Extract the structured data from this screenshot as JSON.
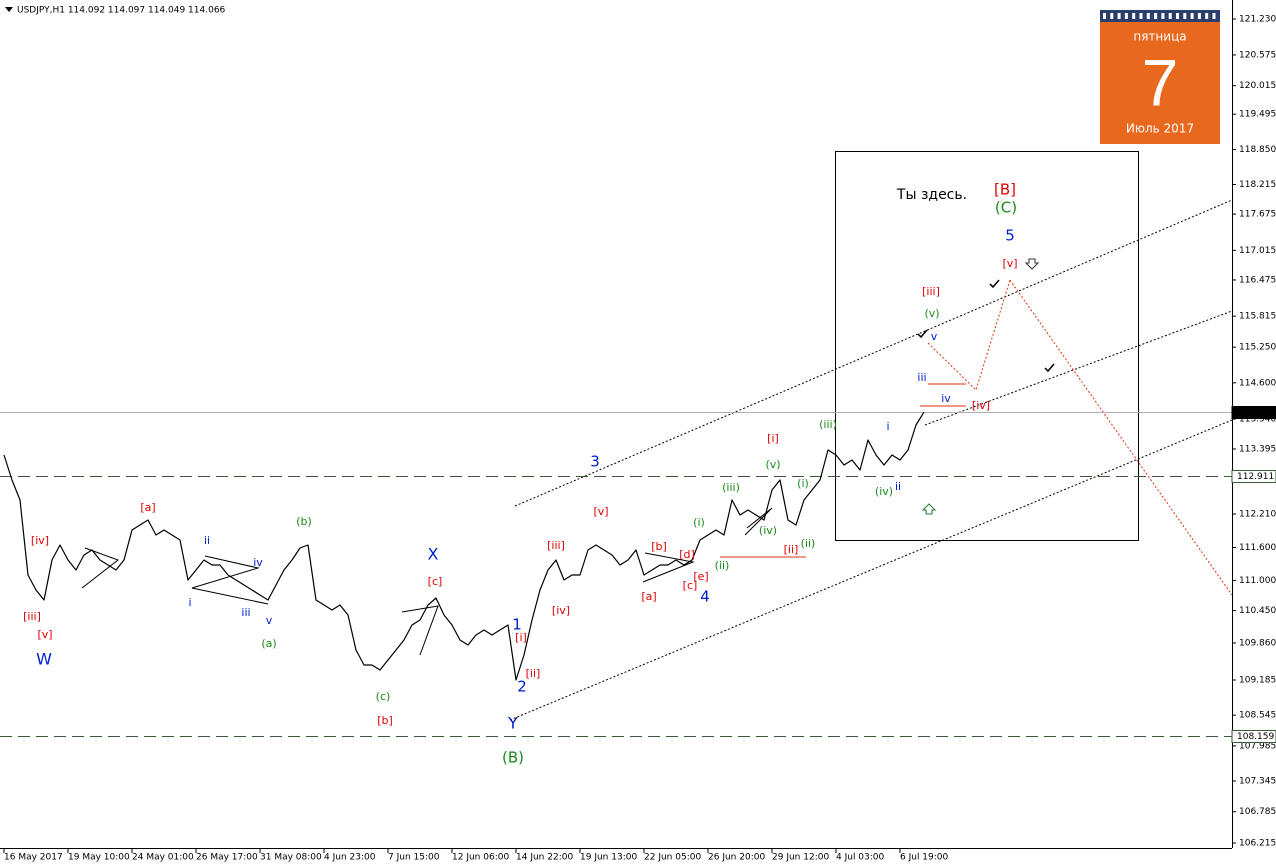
{
  "chart_data": {
    "type": "line",
    "title": "USDJPY,H1  114.092 114.097 114.049 114.066",
    "color": "#000000",
    "categories": [
      "16 May 2017",
      null,
      null,
      null,
      null,
      null,
      null,
      null,
      "19 May 10:00",
      null,
      null,
      null,
      null,
      null,
      null,
      null,
      "24 May 01:00",
      null,
      null,
      null,
      null,
      null,
      null,
      null,
      "26 May 17:00",
      null,
      null,
      null,
      null,
      null,
      null,
      null,
      "31 May 08:00",
      null,
      null,
      null,
      null,
      null,
      null,
      null,
      "4 Jun 23:00",
      null,
      null,
      null,
      null,
      null,
      null,
      null,
      "7 Jun 15:00",
      null,
      null,
      null,
      null,
      null,
      null,
      null,
      "12 Jun 06:00",
      null,
      null,
      null,
      null,
      null,
      null,
      null,
      "14 Jun 22:00",
      null,
      null,
      null,
      null,
      null,
      null,
      null,
      "19 Jun 13:00",
      null,
      null,
      null,
      null,
      null,
      null,
      null,
      "22 Jun 05:00",
      null,
      null,
      null,
      null,
      null,
      null,
      null,
      "26 Jun 20:00",
      null,
      null,
      null,
      null,
      null,
      null,
      null,
      "29 Jun 12:00",
      null,
      null,
      null,
      null,
      null,
      null,
      null,
      "4 Jul 03:00",
      null,
      null,
      null,
      null,
      null,
      null,
      null,
      "6 Jul 19:00",
      null,
      null,
      null
    ],
    "values": [
      113.285,
      112.83,
      112.465,
      111.099,
      110.825,
      110.643,
      111.372,
      111.645,
      111.372,
      111.19,
      111.463,
      111.554,
      111.372,
      111.281,
      111.19,
      111.372,
      111.919,
      112.01,
      112.101,
      111.828,
      111.919,
      111.828,
      111.736,
      111.007,
      111.19,
      111.372,
      111.281,
      111.281,
      111.099,
      111.007,
      110.916,
      110.825,
      110.734,
      110.643,
      110.916,
      111.19,
      111.372,
      111.591,
      111.645,
      110.643,
      110.552,
      110.461,
      110.552,
      110.37,
      109.732,
      109.459,
      109.459,
      109.368,
      109.55,
      109.732,
      109.914,
      110.188,
      110.279,
      110.552,
      110.68,
      110.37,
      110.188,
      109.914,
      109.823,
      110.005,
      110.096,
      110.005,
      110.096,
      110.188,
      109.185,
      109.641,
      110.279,
      110.825,
      111.19,
      111.372,
      111.007,
      111.099,
      111.099,
      111.554,
      111.645,
      111.554,
      111.463,
      111.281,
      111.372,
      111.554,
      111.099,
      111.19,
      111.281,
      111.281,
      111.372,
      111.281,
      111.372,
      111.736,
      111.828,
      111.919,
      111.828,
      112.465,
      112.192,
      112.283,
      112.192,
      112.101,
      112.647,
      112.83,
      112.101,
      112.01,
      112.465,
      112.647,
      112.83,
      113.376,
      113.285,
      113.103,
      113.194,
      113.012,
      113.559,
      113.285,
      113.103,
      113.285,
      113.194,
      113.376,
      113.832,
      114.066
    ],
    "ylim": [
      106.124,
      121.576
    ],
    "yticks": [
      {
        "value": 121.23,
        "label": "121.230"
      },
      {
        "value": 120.575,
        "label": "120.575"
      },
      {
        "value": 120.015,
        "label": "120.015"
      },
      {
        "value": 119.495,
        "label": "119.495"
      },
      {
        "value": 118.85,
        "label": "118.850"
      },
      {
        "value": 118.215,
        "label": "118.215"
      },
      {
        "value": 117.675,
        "label": "117.675"
      },
      {
        "value": 117.015,
        "label": "117.015"
      },
      {
        "value": 116.475,
        "label": "116.475"
      },
      {
        "value": 115.815,
        "label": "115.815"
      },
      {
        "value": 115.25,
        "label": "115.250"
      },
      {
        "value": 114.6,
        "label": "114.600"
      },
      {
        "value": 113.94,
        "label": "113.940"
      },
      {
        "value": 113.395,
        "label": "113.395"
      },
      {
        "value": 112.83,
        "label": "112.830"
      },
      {
        "value": 112.21,
        "label": "112.210"
      },
      {
        "value": 111.6,
        "label": "111.600"
      },
      {
        "value": 111,
        "label": "111.000"
      },
      {
        "value": 110.45,
        "label": "110.450"
      },
      {
        "value": 109.86,
        "label": "109.860"
      },
      {
        "value": 109.185,
        "label": "109.185"
      },
      {
        "value": 108.545,
        "label": "108.545"
      },
      {
        "value": 107.985,
        "label": "107.985"
      },
      {
        "value": 107.345,
        "label": "107.345"
      },
      {
        "value": 106.785,
        "label": "106.785"
      },
      {
        "value": 106.215,
        "label": "106.215"
      }
    ],
    "levels": [
      {
        "value": 114.066,
        "label": "114.066",
        "dashed": false,
        "current": true
      },
      {
        "value": 112.911,
        "label": "112.911",
        "dashed": true,
        "current": false
      },
      {
        "value": 108.159,
        "label": "108.159",
        "dashed": true,
        "current": false
      }
    ],
    "annotations": [
      "[iv]",
      "[iii]",
      "[v]",
      "[a]",
      "[b]",
      "[c]",
      "[iii]",
      "[v]",
      "[iv]",
      "[i]",
      "[ii]",
      "[b]",
      "[d]",
      "[a]",
      "[c]",
      "[e]",
      "[i]",
      "[ii]",
      "[iii]",
      "[iv]",
      "[v]",
      "[B]",
      "(b)",
      "(a)",
      "(c)",
      "(B)",
      "(i)",
      "(ii)",
      "(iii)",
      "(iv)",
      "(v)",
      "(i)",
      "(ii)",
      "(iii)",
      "(iv)",
      "(v)",
      "(C)",
      "ii",
      "iv",
      "i",
      "iii",
      "v",
      "i",
      "ii",
      "iii",
      "iv",
      "v",
      "W",
      "X",
      "Y",
      "1",
      "2",
      "3",
      "4",
      "5",
      "Ты здесь."
    ]
  },
  "calendar": {
    "weekday": "пятница",
    "day": 7,
    "month_year": "Июль 2017"
  }
}
